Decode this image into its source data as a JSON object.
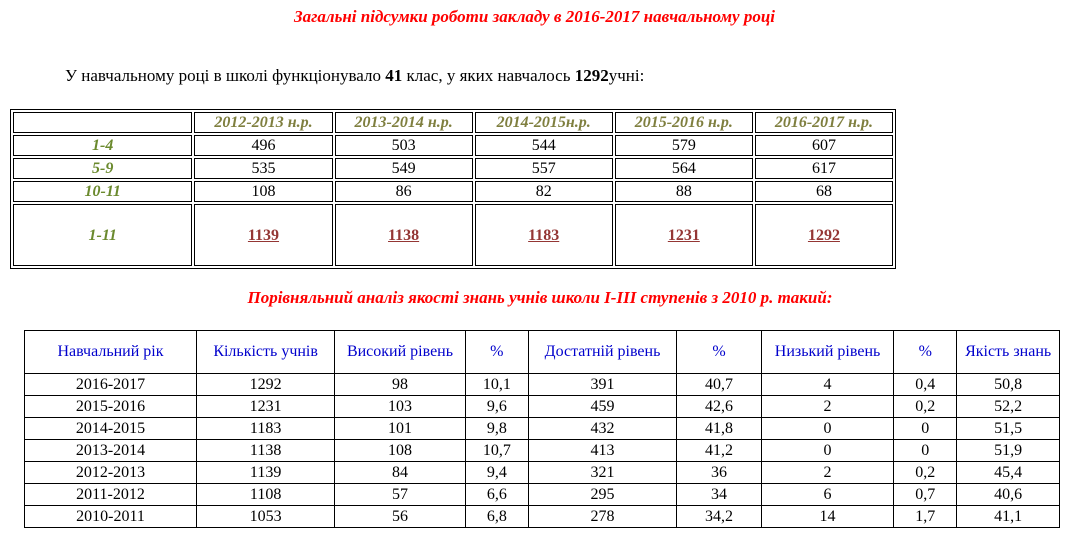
{
  "title": "Загальні підсумки роботи закладу в 2016-2017 навчальному році",
  "intro": {
    "before": "У навчальному році в школі функціонувало ",
    "classes": "41",
    "middle": " клас, у яких навчалось ",
    "students": "1292",
    "after": "учні:"
  },
  "table1": {
    "headers": [
      "",
      "2012-2013 н.р.",
      "2013-2014 н.р.",
      "2014-2015н.р.",
      "2015-2016 н.р.",
      "2016-2017 н.р."
    ],
    "rows": [
      {
        "label": "1-4",
        "values": [
          "496",
          "503",
          "544",
          "579",
          "607"
        ]
      },
      {
        "label": "5-9",
        "values": [
          "535",
          "549",
          "557",
          "564",
          "617"
        ]
      },
      {
        "label": "10-11",
        "values": [
          "108",
          "86",
          "82",
          "88",
          "68"
        ]
      }
    ],
    "total": {
      "label": "1-11",
      "values": [
        "1139",
        "1138",
        "1183",
        "1231",
        "1292"
      ]
    }
  },
  "subtitle": "Порівняльний аналіз якості знань учнів школи І-ІІІ ступенів з 2010 р. такий:",
  "table2": {
    "headers": [
      "Навчальний рік",
      "Кількість учнів",
      "Високий рівень",
      "%",
      "Достатній рівень",
      "%",
      "Низький рівень",
      "%",
      "Якість знань"
    ],
    "rows": [
      [
        "2016-2017",
        "1292",
        "98",
        "10,1",
        "391",
        "40,7",
        "4",
        "0,4",
        "50,8"
      ],
      [
        "2015-2016",
        "1231",
        "103",
        "9,6",
        "459",
        "42,6",
        "2",
        "0,2",
        "52,2"
      ],
      [
        "2014-2015",
        "1183",
        "101",
        "9,8",
        "432",
        "41,8",
        "0",
        "0",
        "51,5"
      ],
      [
        "2013-2014",
        "1138",
        "108",
        "10,7",
        "413",
        "41,2",
        "0",
        "0",
        "51,9"
      ],
      [
        "2012-2013",
        "1139",
        "84",
        "9,4",
        "321",
        "36",
        "2",
        "0,2",
        "45,4"
      ],
      [
        "2011-2012",
        "1108",
        "57",
        "6,6",
        "295",
        "34",
        "6",
        "0,7",
        "40,6"
      ],
      [
        "2010-2011",
        "1053",
        "56",
        "6,8",
        "278",
        "34,2",
        "14",
        "1,7",
        "41,1"
      ]
    ]
  }
}
